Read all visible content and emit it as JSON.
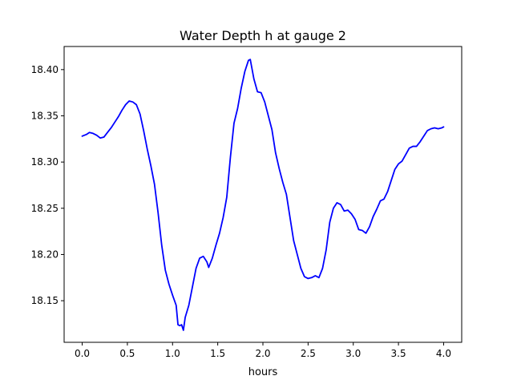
{
  "chart_data": {
    "type": "line",
    "title": "Water Depth h at gauge 2",
    "xlabel": "hours",
    "ylabel": "",
    "xlim": [
      -0.2,
      4.2
    ],
    "ylim": [
      18.105,
      18.425
    ],
    "grid": false,
    "legend": "none",
    "x_ticks": [
      0.0,
      0.5,
      1.0,
      1.5,
      2.0,
      2.5,
      3.0,
      3.5,
      4.0
    ],
    "x_tick_labels": [
      "0.0",
      "0.5",
      "1.0",
      "1.5",
      "2.0",
      "2.5",
      "3.0",
      "3.5",
      "4.0"
    ],
    "y_ticks": [
      18.15,
      18.2,
      18.25,
      18.3,
      18.35,
      18.4
    ],
    "y_tick_labels": [
      "18.15",
      "18.20",
      "18.25",
      "18.30",
      "18.35",
      "18.40"
    ],
    "series": [
      {
        "color": "#0000ff",
        "x": [
          0.0,
          0.05,
          0.08,
          0.12,
          0.16,
          0.2,
          0.24,
          0.28,
          0.32,
          0.36,
          0.4,
          0.44,
          0.48,
          0.52,
          0.56,
          0.6,
          0.64,
          0.68,
          0.72,
          0.76,
          0.8,
          0.84,
          0.88,
          0.92,
          0.96,
          1.0,
          1.04,
          1.06,
          1.08,
          1.1,
          1.12,
          1.14,
          1.18,
          1.22,
          1.26,
          1.3,
          1.34,
          1.38,
          1.4,
          1.44,
          1.48,
          1.52,
          1.56,
          1.6,
          1.64,
          1.68,
          1.72,
          1.76,
          1.8,
          1.84,
          1.86,
          1.9,
          1.94,
          1.98,
          2.02,
          2.06,
          2.1,
          2.14,
          2.18,
          2.22,
          2.26,
          2.3,
          2.34,
          2.38,
          2.42,
          2.46,
          2.5,
          2.54,
          2.58,
          2.62,
          2.66,
          2.7,
          2.74,
          2.78,
          2.82,
          2.86,
          2.9,
          2.94,
          2.98,
          3.02,
          3.06,
          3.1,
          3.14,
          3.18,
          3.22,
          3.26,
          3.3,
          3.34,
          3.38,
          3.42,
          3.46,
          3.5,
          3.54,
          3.58,
          3.62,
          3.66,
          3.7,
          3.74,
          3.78,
          3.82,
          3.86,
          3.9,
          3.94,
          3.98,
          4.0
        ],
        "y": [
          18.328,
          18.33,
          18.332,
          18.331,
          18.329,
          18.326,
          18.327,
          18.332,
          18.337,
          18.343,
          18.349,
          18.356,
          18.362,
          18.366,
          18.365,
          18.362,
          18.352,
          18.334,
          18.314,
          18.296,
          18.276,
          18.245,
          18.21,
          18.183,
          18.168,
          18.156,
          18.145,
          18.124,
          18.123,
          18.124,
          18.118,
          18.132,
          18.145,
          18.165,
          18.185,
          18.196,
          18.198,
          18.192,
          18.186,
          18.196,
          18.21,
          18.223,
          18.24,
          18.262,
          18.305,
          18.342,
          18.358,
          18.38,
          18.398,
          18.41,
          18.411,
          18.39,
          18.376,
          18.375,
          18.365,
          18.35,
          18.335,
          18.31,
          18.293,
          18.278,
          18.265,
          18.24,
          18.215,
          18.2,
          18.185,
          18.176,
          18.174,
          18.175,
          18.177,
          18.175,
          18.185,
          18.205,
          18.235,
          18.25,
          18.256,
          18.254,
          18.247,
          18.248,
          18.244,
          18.238,
          18.227,
          18.226,
          18.223,
          18.23,
          18.241,
          18.249,
          18.258,
          18.26,
          18.268,
          18.28,
          18.292,
          18.298,
          18.301,
          18.308,
          18.315,
          18.317,
          18.317,
          18.322,
          18.328,
          18.334,
          18.336,
          18.337,
          18.336,
          18.337,
          18.338
        ]
      }
    ]
  }
}
